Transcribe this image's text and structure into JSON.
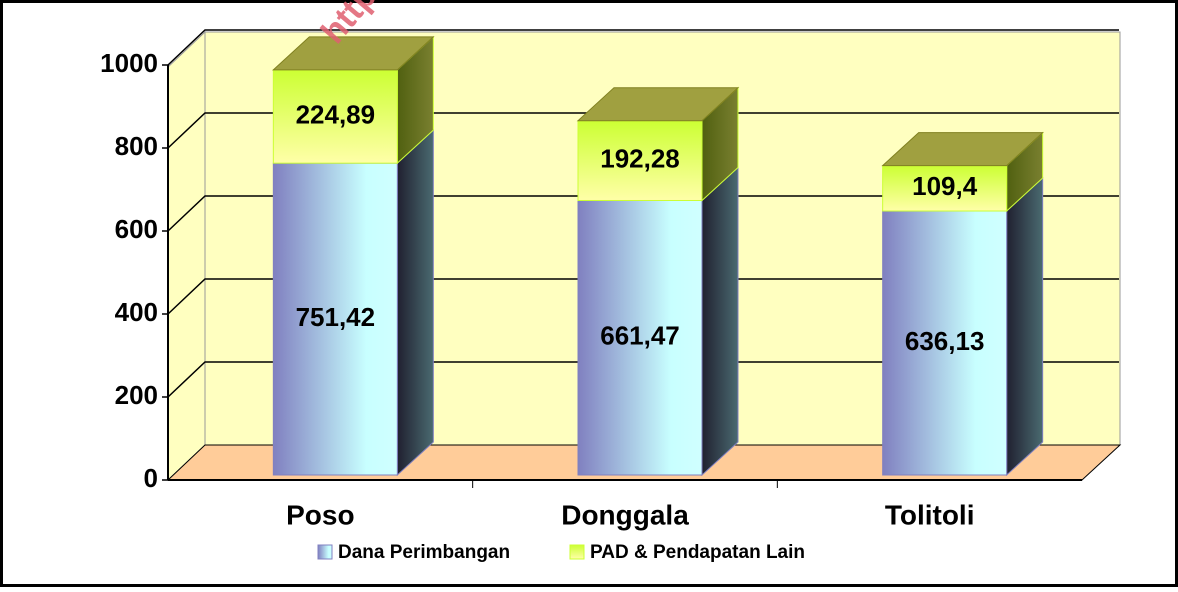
{
  "chart_data": {
    "type": "bar3d_stacked",
    "watermark": "http://sulteng",
    "categories": [
      "Poso",
      "Donggala",
      "Tolitoli"
    ],
    "series": [
      {
        "name": "Dana Perimbangan",
        "color": "#8080c0",
        "values": [
          751.42,
          661.47,
          636.13
        ],
        "value_labels": [
          "751,42",
          "661,47",
          "636,13"
        ]
      },
      {
        "name": "PAD & Pendapatan Lain",
        "color": "#ccff33",
        "values": [
          224.89,
          192.28,
          109.4
        ],
        "value_labels": [
          "224,89",
          "192,28",
          "109,4"
        ]
      }
    ],
    "ylim": [
      0,
      1000
    ],
    "yticks": [
      0,
      200,
      400,
      600,
      800,
      1000
    ],
    "grid": true,
    "legend": "bottom"
  }
}
